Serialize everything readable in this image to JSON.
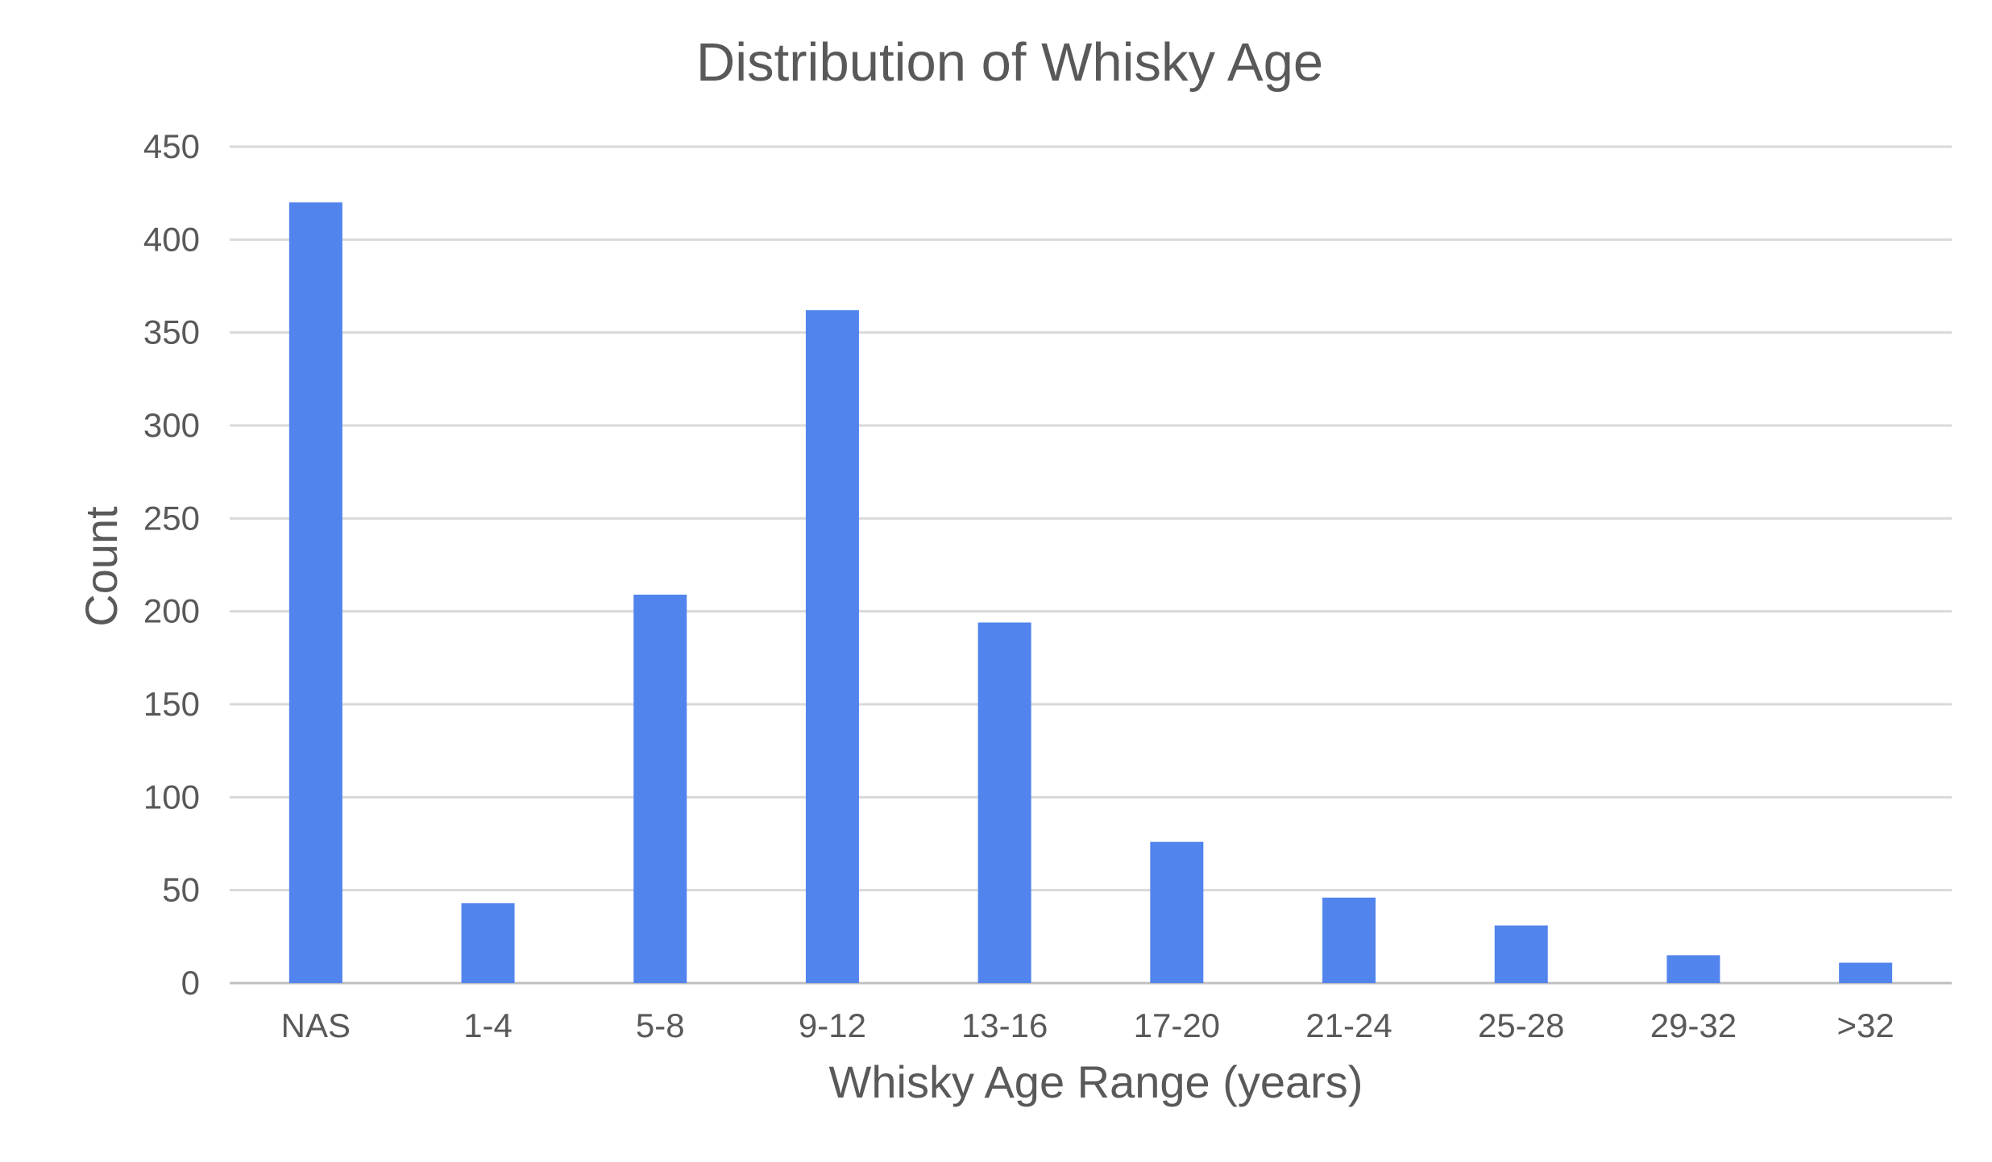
{
  "chart_data": {
    "type": "bar",
    "title": "Distribution of Whisky Age",
    "xlabel": "Whisky Age Range (years)",
    "ylabel": "Count",
    "categories": [
      "NAS",
      "1-4",
      "5-8",
      "9-12",
      "13-16",
      "17-20",
      "21-24",
      "25-28",
      "29-32",
      ">32"
    ],
    "values": [
      420,
      43,
      209,
      362,
      194,
      76,
      46,
      31,
      15,
      11
    ],
    "ylim": [
      0,
      450
    ],
    "yticks": [
      0,
      50,
      100,
      150,
      200,
      250,
      300,
      350,
      400,
      450
    ],
    "grid": true,
    "legend": "none",
    "bar_color": "#5284ED"
  }
}
